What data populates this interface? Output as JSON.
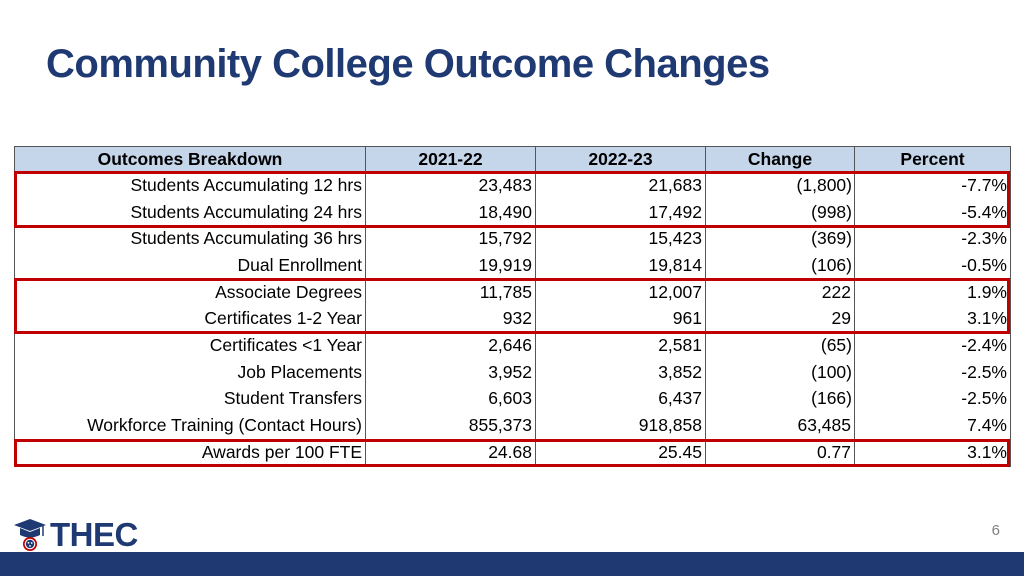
{
  "title": "Community College Outcome Changes",
  "table": {
    "headers": [
      "Outcomes Breakdown",
      "2021-22",
      "2022-23",
      "Change",
      "Percent"
    ],
    "rows": [
      {
        "label": "Students Accumulating 12 hrs",
        "y1": "23,483",
        "y2": "21,683",
        "change": "(1,800)",
        "percent": "-7.7%"
      },
      {
        "label": "Students Accumulating 24 hrs",
        "y1": "18,490",
        "y2": "17,492",
        "change": "(998)",
        "percent": "-5.4%"
      },
      {
        "label": "Students Accumulating 36 hrs",
        "y1": "15,792",
        "y2": "15,423",
        "change": "(369)",
        "percent": "-2.3%"
      },
      {
        "label": "Dual Enrollment",
        "y1": "19,919",
        "y2": "19,814",
        "change": "(106)",
        "percent": "-0.5%"
      },
      {
        "label": "Associate Degrees",
        "y1": "11,785",
        "y2": "12,007",
        "change": "222",
        "percent": "1.9%"
      },
      {
        "label": "Certificates 1-2 Year",
        "y1": "932",
        "y2": "961",
        "change": "29",
        "percent": "3.1%"
      },
      {
        "label": "Certificates <1 Year",
        "y1": "2,646",
        "y2": "2,581",
        "change": "(65)",
        "percent": "-2.4%"
      },
      {
        "label": "Job Placements",
        "y1": "3,952",
        "y2": "3,852",
        "change": "(100)",
        "percent": "-2.5%"
      },
      {
        "label": "Student Transfers",
        "y1": "6,603",
        "y2": "6,437",
        "change": "(166)",
        "percent": "-2.5%"
      },
      {
        "label": "Workforce Training (Contact Hours)",
        "y1": "855,373",
        "y2": "918,858",
        "change": "63,485",
        "percent": "7.4%"
      },
      {
        "label": "Awards per 100 FTE",
        "y1": "24.68",
        "y2": "25.45",
        "change": "0.77",
        "percent": "3.1%"
      }
    ]
  },
  "logo": {
    "text": "THEC",
    "icon": "graduation-cap-icon"
  },
  "page_number": "6",
  "colors": {
    "title": "#1f3a73",
    "header_fill": "#c5d5ea",
    "highlight": "#c00000",
    "footer": "#1f3a73"
  }
}
